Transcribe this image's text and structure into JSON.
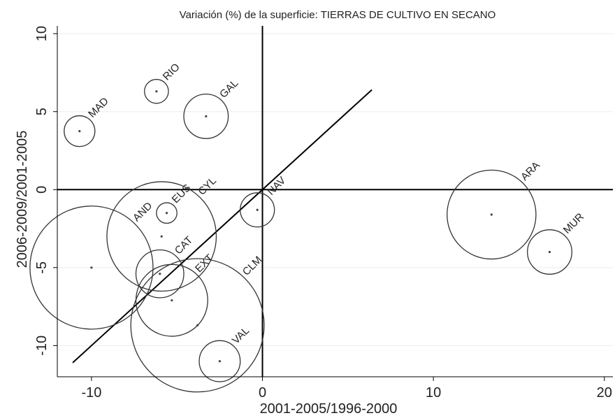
{
  "chart_data": {
    "type": "scatter",
    "title": "Variación (%) de la superficie: TIERRAS DE CULTIVO EN SECANO",
    "xlabel": "2001-2005/1996-2000",
    "ylabel": "2006-2009/2001-2005",
    "xlim": [
      -12,
      20.5
    ],
    "ylim": [
      -12,
      10.5
    ],
    "x_ticks": [
      -10,
      0,
      10,
      20
    ],
    "y_ticks": [
      -10,
      -5,
      0,
      5,
      10
    ],
    "x_tick_labels": [
      "-10",
      "0",
      "10",
      "20"
    ],
    "y_tick_labels": [
      "-10",
      "-5",
      "0",
      "5",
      "10"
    ],
    "grid": true,
    "reference_lines": {
      "x": 0,
      "y": 0
    },
    "diagonal": {
      "x": [
        -11.1,
        6.4
      ],
      "y": [
        -11.1,
        6.4
      ]
    },
    "points": [
      {
        "label": "MAD",
        "x": -10.7,
        "y": 3.75,
        "size": 0.9
      },
      {
        "label": "RIO",
        "x": -6.2,
        "y": 6.3,
        "size": 0.7
      },
      {
        "label": "GAL",
        "x": -3.3,
        "y": 4.7,
        "size": 1.3
      },
      {
        "label": "NAV",
        "x": -0.3,
        "y": -1.3,
        "size": 1.0
      },
      {
        "label": "EUS",
        "x": -5.6,
        "y": -1.5,
        "size": 0.6
      },
      {
        "label": "CYL",
        "x": -5.9,
        "y": -3.0,
        "size": 3.2
      },
      {
        "label": "AND",
        "x": -10.0,
        "y": -5.0,
        "size": 3.6
      },
      {
        "label": "CAT",
        "x": -6.0,
        "y": -5.4,
        "size": 1.4
      },
      {
        "label": "EXT",
        "x": -5.3,
        "y": -7.1,
        "size": 2.1
      },
      {
        "label": "CLM",
        "x": -3.8,
        "y": -8.7,
        "size": 3.9
      },
      {
        "label": "VAL",
        "x": -2.5,
        "y": -11.0,
        "size": 1.2
      },
      {
        "label": "ARA",
        "x": 13.4,
        "y": -1.6,
        "size": 2.6
      },
      {
        "label": "MUR",
        "x": 16.8,
        "y": -4.0,
        "size": 1.3
      }
    ]
  }
}
